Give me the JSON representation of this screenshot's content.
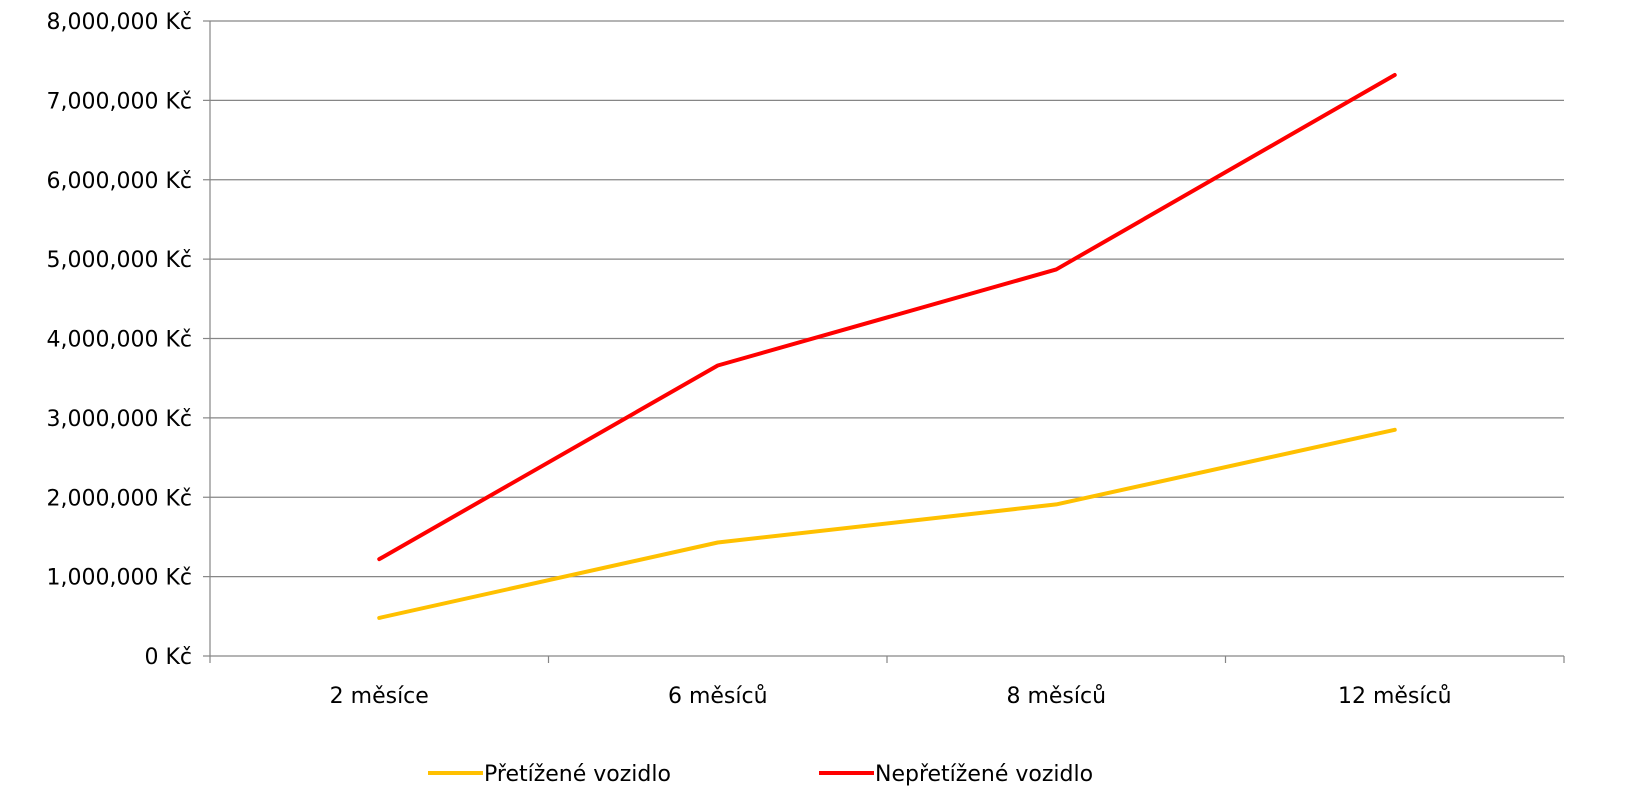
{
  "chart_data": {
    "type": "line",
    "categories": [
      "2 měsíce",
      "6 měsíců",
      "8 měsíců",
      "12 měsíců"
    ],
    "series": [
      {
        "name": "Přetížené vozidlo",
        "values": [
          480000,
          1430000,
          1910000,
          2850000
        ],
        "color": "#FFC000"
      },
      {
        "name": "Nepřetížené vozidlo",
        "values": [
          1220000,
          3660000,
          4870000,
          7320000
        ],
        "color": "#FF0000"
      }
    ],
    "y_ticks": [
      "0 Kč",
      "1,000,000 Kč",
      "2,000,000 Kč",
      "3,000,000 Kč",
      "4,000,000 Kč",
      "5,000,000 Kč",
      "6,000,000 Kč",
      "7,000,000 Kč",
      "8,000,000 Kč"
    ],
    "ylim": [
      0,
      8000000
    ],
    "grid": true,
    "legend_position": "bottom",
    "axis_color": "#868686",
    "grid_color": "#868686"
  }
}
